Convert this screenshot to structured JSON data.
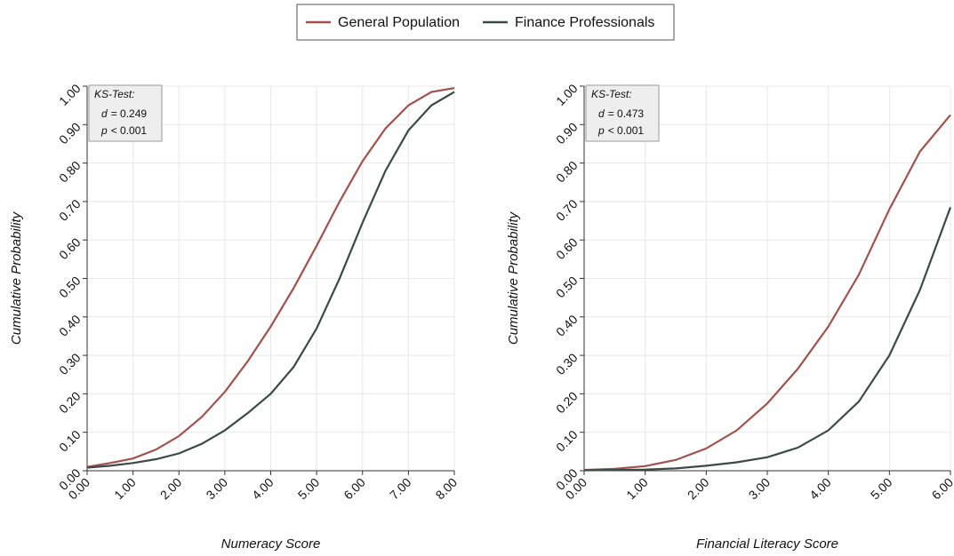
{
  "chart_data": [
    {
      "type": "line",
      "xlabel": "Numeracy Score",
      "ylabel": "Cumulative Probability",
      "x": [
        0,
        0.5,
        1,
        1.5,
        2,
        2.5,
        3,
        3.5,
        4,
        4.5,
        5,
        5.5,
        6,
        6.5,
        7,
        7.5,
        8
      ],
      "series": [
        {
          "name": "General Population",
          "color": "#a0524f",
          "values": [
            0.01,
            0.02,
            0.032,
            0.055,
            0.09,
            0.14,
            0.205,
            0.285,
            0.375,
            0.475,
            0.585,
            0.7,
            0.805,
            0.89,
            0.95,
            0.985,
            0.995
          ]
        },
        {
          "name": "Finance Professionals",
          "color": "#3b4a47",
          "values": [
            0.008,
            0.013,
            0.02,
            0.03,
            0.045,
            0.07,
            0.105,
            0.15,
            0.2,
            0.27,
            0.37,
            0.5,
            0.645,
            0.78,
            0.885,
            0.95,
            0.985
          ]
        }
      ],
      "xlim": [
        0,
        8
      ],
      "xticks": [
        {
          "value": 0,
          "label": "0.00"
        },
        {
          "value": 1,
          "label": "1.00"
        },
        {
          "value": 2,
          "label": "2.00"
        },
        {
          "value": 3,
          "label": "3.00"
        },
        {
          "value": 4,
          "label": "4.00"
        },
        {
          "value": 5,
          "label": "5.00"
        },
        {
          "value": 6,
          "label": "6.00"
        },
        {
          "value": 7,
          "label": "7.00"
        },
        {
          "value": 8,
          "label": "8.00"
        }
      ],
      "ylim": [
        0,
        1
      ],
      "yticks": [
        {
          "value": 0,
          "label": "0.00"
        },
        {
          "value": 0.1,
          "label": "0.10"
        },
        {
          "value": 0.2,
          "label": "0.20"
        },
        {
          "value": 0.3,
          "label": "0.30"
        },
        {
          "value": 0.4,
          "label": "0.40"
        },
        {
          "value": 0.5,
          "label": "0.50"
        },
        {
          "value": 0.6,
          "label": "0.60"
        },
        {
          "value": 0.7,
          "label": "0.70"
        },
        {
          "value": 0.8,
          "label": "0.80"
        },
        {
          "value": 0.9,
          "label": "0.90"
        },
        {
          "value": 1,
          "label": "1.00"
        }
      ],
      "grid": true,
      "annotation": {
        "title": "KS-Test:",
        "lines": [
          {
            "stat": "d",
            "text": "= 0.249"
          },
          {
            "stat": "p",
            "text": "< 0.001"
          }
        ]
      }
    },
    {
      "type": "line",
      "xlabel": "Financial Literacy Score",
      "ylabel": "Cumulative Probability",
      "x": [
        0,
        0.5,
        1,
        1.5,
        2,
        2.5,
        3,
        3.5,
        4,
        4.5,
        5,
        5.5,
        6
      ],
      "series": [
        {
          "name": "General Population",
          "color": "#a0524f",
          "values": [
            0.002,
            0.005,
            0.012,
            0.028,
            0.058,
            0.105,
            0.175,
            0.265,
            0.375,
            0.51,
            0.68,
            0.83,
            0.925
          ]
        },
        {
          "name": "Finance Professionals",
          "color": "#3b4a47",
          "values": [
            0.001,
            0.002,
            0.003,
            0.006,
            0.013,
            0.022,
            0.035,
            0.06,
            0.105,
            0.18,
            0.3,
            0.47,
            0.685
          ]
        }
      ],
      "xlim": [
        0,
        6
      ],
      "xticks": [
        {
          "value": 0,
          "label": "0.00"
        },
        {
          "value": 1,
          "label": "1.00"
        },
        {
          "value": 2,
          "label": "2.00"
        },
        {
          "value": 3,
          "label": "3.00"
        },
        {
          "value": 4,
          "label": "4.00"
        },
        {
          "value": 5,
          "label": "5.00"
        },
        {
          "value": 6,
          "label": "6.00"
        }
      ],
      "ylim": [
        0,
        1
      ],
      "yticks": [
        {
          "value": 0,
          "label": "0.00"
        },
        {
          "value": 0.1,
          "label": "0.10"
        },
        {
          "value": 0.2,
          "label": "0.20"
        },
        {
          "value": 0.3,
          "label": "0.30"
        },
        {
          "value": 0.4,
          "label": "0.40"
        },
        {
          "value": 0.5,
          "label": "0.50"
        },
        {
          "value": 0.6,
          "label": "0.60"
        },
        {
          "value": 0.7,
          "label": "0.70"
        },
        {
          "value": 0.8,
          "label": "0.80"
        },
        {
          "value": 0.9,
          "label": "0.90"
        },
        {
          "value": 1,
          "label": "1.00"
        }
      ],
      "grid": true,
      "annotation": {
        "title": "KS-Test:",
        "lines": [
          {
            "stat": "d",
            "text": "= 0.473"
          },
          {
            "stat": "p",
            "text": "< 0.001"
          }
        ]
      }
    }
  ]
}
